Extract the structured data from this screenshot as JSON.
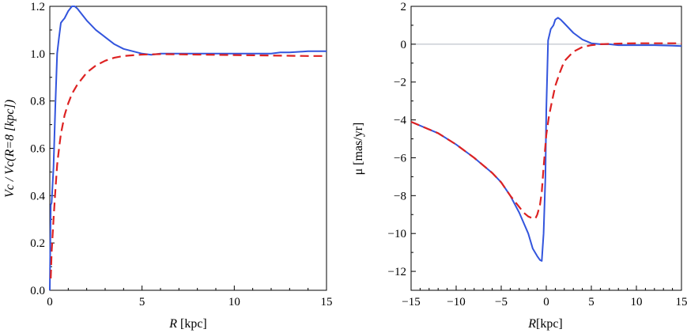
{
  "chart_data": [
    {
      "type": "line",
      "xlabel_italic": "R",
      "xlabel_unit": "[kpc]",
      "ylabel_parts": [
        "Vc / Vc(R=8 [kpc])"
      ],
      "xlim": [
        0,
        15
      ],
      "ylim": [
        0,
        1.2
      ],
      "xticks": [
        0,
        5,
        10,
        15
      ],
      "xtick_labels": [
        "0",
        "5",
        "10",
        "15"
      ],
      "xminor": [
        1,
        2,
        3,
        4,
        6,
        7,
        8,
        9,
        11,
        12,
        13,
        14
      ],
      "yticks": [
        0,
        0.2,
        0.4,
        0.6,
        0.8,
        1.0,
        1.2
      ],
      "ytick_labels": [
        "0.0",
        "0.2",
        "0.4",
        "0.6",
        "0.8",
        "1.0",
        "1.2"
      ],
      "yminor": [
        0.1,
        0.3,
        0.5,
        0.7,
        0.9,
        1.1
      ],
      "grid": false,
      "series": [
        {
          "color": "#3355dd",
          "dash": "solid",
          "x": [
            0,
            0.05,
            0.1,
            0.2,
            0.3,
            0.4,
            0.5,
            0.6,
            0.7,
            0.8,
            1.0,
            1.2,
            1.35,
            1.5,
            1.7,
            2.0,
            2.5,
            3.0,
            3.5,
            4.0,
            4.5,
            5.0,
            5.5,
            6,
            7,
            8,
            9,
            10,
            11,
            12,
            12.5,
            13,
            14,
            15
          ],
          "y": [
            0.0,
            0.36,
            0.37,
            0.52,
            0.78,
            1.0,
            1.07,
            1.13,
            1.14,
            1.15,
            1.18,
            1.2,
            1.2,
            1.19,
            1.17,
            1.14,
            1.1,
            1.07,
            1.04,
            1.02,
            1.01,
            1.0,
            0.995,
            1.0,
            1.0,
            1.0,
            1.0,
            1.0,
            1.0,
            1.0,
            1.005,
            1.005,
            1.01,
            1.01
          ]
        },
        {
          "color": "#dd2222",
          "dash": "dashed",
          "x": [
            0.05,
            0.1,
            0.2,
            0.3,
            0.4,
            0.5,
            0.6,
            0.8,
            1.0,
            1.2,
            1.5,
            2.0,
            2.5,
            3.0,
            3.5,
            4.0,
            5.0,
            6,
            7,
            8,
            9,
            10,
            11,
            12,
            13,
            14,
            15
          ],
          "y": [
            0.05,
            0.16,
            0.3,
            0.42,
            0.53,
            0.6,
            0.66,
            0.74,
            0.79,
            0.83,
            0.87,
            0.92,
            0.95,
            0.97,
            0.983,
            0.99,
            0.996,
            0.998,
            0.997,
            0.996,
            0.995,
            0.994,
            0.993,
            0.992,
            0.991,
            0.99,
            0.99
          ]
        }
      ]
    },
    {
      "type": "line",
      "xlabel_italic": "R",
      "xlabel_unit": "[kpc]",
      "ylabel": "μ [mas/yr]",
      "xlim": [
        -15,
        15
      ],
      "ylim": [
        -13,
        2
      ],
      "xticks": [
        -15,
        -10,
        -5,
        0,
        5,
        10,
        15
      ],
      "xtick_labels": [
        "−15",
        "−10",
        "−5",
        "0",
        "5",
        "10",
        "15"
      ],
      "xminor": [
        -14,
        -13,
        -12,
        -11,
        -9,
        -8,
        -7,
        -6,
        -4,
        -3,
        -2,
        -1,
        1,
        2,
        3,
        4,
        6,
        7,
        8,
        9,
        11,
        12,
        13,
        14
      ],
      "yticks": [
        -12,
        -10,
        -8,
        -6,
        -4,
        -2,
        0,
        2
      ],
      "ytick_labels": [
        "−12",
        "−10",
        "−8",
        "−6",
        "−4",
        "−2",
        "0",
        "2"
      ],
      "yminor": [
        -13,
        -11,
        -9,
        -7,
        -5,
        -3,
        -1,
        1
      ],
      "reference_line_y": 0,
      "grid": false,
      "series": [
        {
          "color": "#3355dd",
          "dash": "solid",
          "x": [
            -15,
            -12,
            -10,
            -8,
            -6,
            -5,
            -4,
            -3,
            -2,
            -1.5,
            -1,
            -0.7,
            -0.5,
            -0.3,
            -0.1,
            0,
            0.2,
            0.5,
            0.8,
            1.0,
            1.3,
            1.6,
            2,
            3,
            4,
            5,
            6,
            7,
            8,
            10,
            12,
            14,
            15
          ],
          "y": [
            -4.1,
            -4.7,
            -5.3,
            -6.0,
            -6.8,
            -7.3,
            -8.0,
            -8.9,
            -10.0,
            -10.8,
            -11.2,
            -11.4,
            -11.45,
            -10.0,
            -7.0,
            -3.5,
            0.2,
            0.8,
            1.0,
            1.3,
            1.4,
            1.3,
            1.1,
            0.6,
            0.25,
            0.05,
            0.0,
            0.0,
            -0.05,
            -0.05,
            -0.05,
            -0.08,
            -0.1
          ]
        },
        {
          "color": "#dd2222",
          "dash": "dashed",
          "x": [
            -15,
            -12,
            -10,
            -8,
            -6,
            -5,
            -4,
            -3,
            -2.5,
            -2,
            -1.5,
            -1.2,
            -1,
            -0.7,
            -0.5,
            -0.3,
            0,
            0.3,
            0.6,
            1.0,
            1.5,
            2,
            3,
            4,
            5,
            6,
            8,
            10,
            12,
            15
          ],
          "y": [
            -4.1,
            -4.7,
            -5.3,
            -6.0,
            -6.8,
            -7.3,
            -8.0,
            -8.6,
            -8.9,
            -9.1,
            -9.2,
            -9.2,
            -9.0,
            -8.5,
            -7.8,
            -6.5,
            -4.8,
            -3.8,
            -3.1,
            -2.2,
            -1.5,
            -0.9,
            -0.4,
            -0.15,
            -0.05,
            0.0,
            0.03,
            0.05,
            0.05,
            0.05
          ]
        }
      ]
    }
  ]
}
